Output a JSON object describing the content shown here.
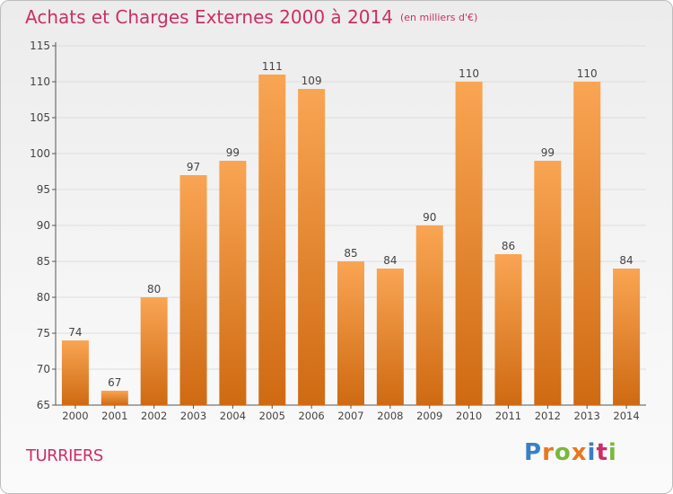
{
  "title": "Achats et Charges Externes 2000 à 2014",
  "subtitle": "(en milliers d'€)",
  "commune": "TURRIERS",
  "logo": {
    "text": "Proxiti",
    "letter_colors": [
      "#3a7fc4",
      "#e8781c",
      "#7ab83a",
      "#e8781c",
      "#3a7fc4",
      "#cc2e63",
      "#7ab83a"
    ]
  },
  "colors": {
    "bar_top": "#f9a553",
    "bar_bottom": "#cf6a12",
    "title": "#cc2e63",
    "grid": "#dddddd"
  },
  "chart_data": {
    "type": "bar",
    "categories": [
      "2000",
      "2001",
      "2002",
      "2003",
      "2004",
      "2005",
      "2006",
      "2007",
      "2008",
      "2009",
      "2010",
      "2011",
      "2012",
      "2013",
      "2014"
    ],
    "values": [
      74,
      67,
      80,
      97,
      99,
      111,
      109,
      85,
      84,
      90,
      110,
      86,
      99,
      110,
      84
    ],
    "ylim": [
      65,
      115
    ],
    "yticks": [
      65,
      70,
      75,
      80,
      85,
      90,
      95,
      100,
      105,
      110,
      115
    ],
    "grid": true,
    "xlabel": "",
    "ylabel": ""
  }
}
